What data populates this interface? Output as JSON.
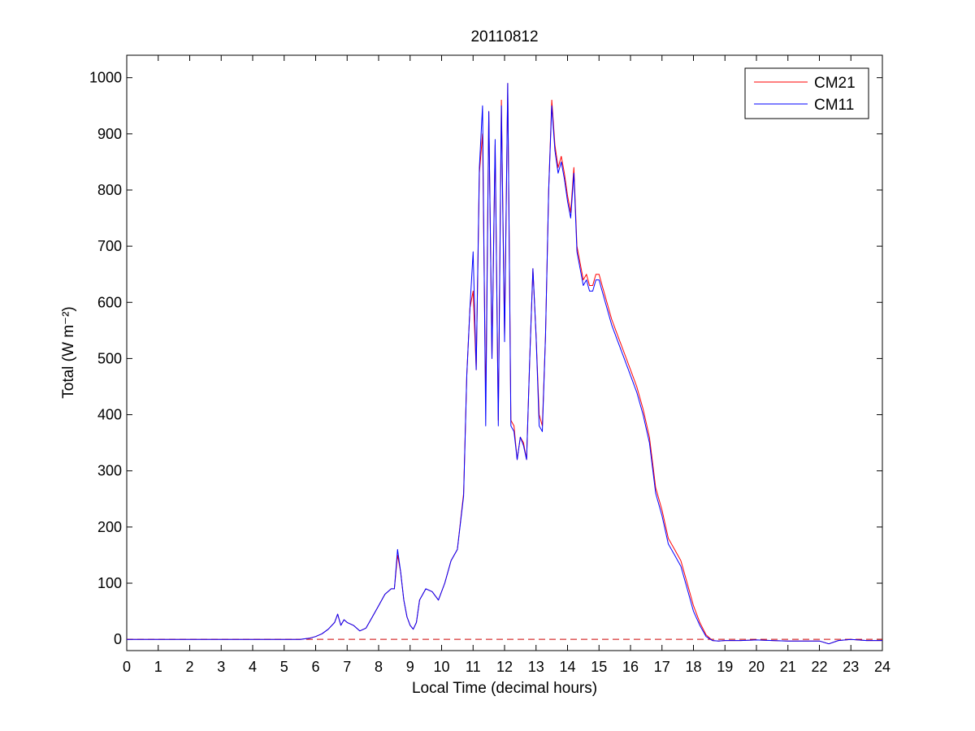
{
  "chart_data": {
    "type": "line",
    "title": "20110812",
    "xlabel": "Local Time (decimal hours)",
    "ylabel": "Total (W m⁻²)",
    "xlim": [
      0,
      24
    ],
    "ylim": [
      -20,
      1040
    ],
    "xticks": [
      0,
      1,
      2,
      3,
      4,
      5,
      6,
      7,
      8,
      9,
      10,
      11,
      12,
      13,
      14,
      15,
      16,
      17,
      18,
      19,
      20,
      21,
      22,
      23,
      24
    ],
    "yticks": [
      0,
      100,
      200,
      300,
      400,
      500,
      600,
      700,
      800,
      900,
      1000
    ],
    "grid": false,
    "legend_position": "top-right",
    "zero_line": {
      "y": 0,
      "color": "#cc0000",
      "style": "dashed"
    },
    "series": [
      {
        "name": "CM21",
        "color": "#ff0000",
        "x": [
          0,
          4.5,
          5.0,
          5.5,
          5.8,
          6.0,
          6.2,
          6.4,
          6.6,
          6.7,
          6.8,
          6.9,
          7.0,
          7.2,
          7.4,
          7.6,
          7.8,
          8.0,
          8.2,
          8.4,
          8.5,
          8.6,
          8.7,
          8.8,
          8.9,
          9.0,
          9.1,
          9.2,
          9.3,
          9.5,
          9.7,
          9.9,
          10.1,
          10.3,
          10.5,
          10.7,
          10.8,
          10.9,
          11.0,
          11.1,
          11.2,
          11.3,
          11.4,
          11.5,
          11.6,
          11.7,
          11.8,
          11.9,
          12.0,
          12.1,
          12.2,
          12.3,
          12.4,
          12.5,
          12.6,
          12.7,
          12.8,
          12.9,
          13.0,
          13.1,
          13.2,
          13.3,
          13.4,
          13.5,
          13.6,
          13.7,
          13.8,
          13.9,
          14.0,
          14.1,
          14.2,
          14.3,
          14.4,
          14.5,
          14.6,
          14.7,
          14.8,
          14.9,
          15.0,
          15.1,
          15.2,
          15.4,
          15.6,
          15.8,
          16.0,
          16.2,
          16.4,
          16.6,
          16.8,
          17.0,
          17.2,
          17.4,
          17.6,
          17.8,
          18.0,
          18.2,
          18.4,
          18.6,
          18.8,
          19.0,
          19.5,
          20.0,
          20.5,
          21.0,
          21.5,
          22.0,
          22.3,
          22.6,
          23.0,
          23.5,
          24.0
        ],
        "y": [
          0,
          0,
          0,
          0,
          2,
          5,
          10,
          18,
          30,
          45,
          25,
          35,
          30,
          25,
          15,
          20,
          40,
          60,
          80,
          90,
          90,
          150,
          120,
          70,
          40,
          25,
          18,
          30,
          70,
          90,
          85,
          70,
          100,
          140,
          160,
          260,
          470,
          590,
          620,
          480,
          830,
          900,
          420,
          940,
          500,
          880,
          390,
          960,
          540,
          990,
          390,
          380,
          320,
          360,
          350,
          320,
          500,
          660,
          540,
          400,
          380,
          540,
          800,
          960,
          880,
          840,
          860,
          830,
          790,
          760,
          840,
          700,
          670,
          640,
          650,
          630,
          630,
          650,
          650,
          630,
          610,
          570,
          540,
          510,
          480,
          450,
          410,
          360,
          270,
          230,
          180,
          160,
          140,
          100,
          60,
          30,
          8,
          -2,
          -3,
          -2,
          -2,
          -1,
          -2,
          -3,
          -3,
          -3,
          -8,
          -2,
          0,
          -2,
          -2
        ]
      },
      {
        "name": "CM11",
        "color": "#0000ff",
        "x": [
          0,
          4.5,
          5.0,
          5.5,
          5.8,
          6.0,
          6.2,
          6.4,
          6.6,
          6.7,
          6.8,
          6.9,
          7.0,
          7.2,
          7.4,
          7.6,
          7.8,
          8.0,
          8.2,
          8.4,
          8.5,
          8.6,
          8.7,
          8.8,
          8.9,
          9.0,
          9.1,
          9.2,
          9.3,
          9.5,
          9.7,
          9.9,
          10.1,
          10.3,
          10.5,
          10.7,
          10.8,
          10.9,
          11.0,
          11.1,
          11.2,
          11.3,
          11.4,
          11.5,
          11.6,
          11.7,
          11.8,
          11.9,
          12.0,
          12.1,
          12.2,
          12.3,
          12.4,
          12.5,
          12.6,
          12.7,
          12.8,
          12.9,
          13.0,
          13.1,
          13.2,
          13.3,
          13.4,
          13.5,
          13.6,
          13.7,
          13.8,
          13.9,
          14.0,
          14.1,
          14.2,
          14.3,
          14.4,
          14.5,
          14.6,
          14.7,
          14.8,
          14.9,
          15.0,
          15.1,
          15.2,
          15.4,
          15.6,
          15.8,
          16.0,
          16.2,
          16.4,
          16.6,
          16.8,
          17.0,
          17.2,
          17.4,
          17.6,
          17.8,
          18.0,
          18.2,
          18.4,
          18.6,
          18.8,
          19.0,
          19.5,
          20.0,
          20.5,
          21.0,
          21.5,
          22.0,
          22.3,
          22.6,
          23.0,
          23.5,
          24.0
        ],
        "y": [
          0,
          0,
          0,
          0,
          2,
          5,
          10,
          18,
          30,
          45,
          25,
          35,
          30,
          25,
          15,
          20,
          40,
          60,
          80,
          90,
          90,
          160,
          120,
          70,
          40,
          25,
          18,
          30,
          70,
          90,
          85,
          70,
          100,
          140,
          160,
          255,
          470,
          590,
          690,
          480,
          840,
          950,
          380,
          940,
          500,
          890,
          380,
          950,
          530,
          990,
          380,
          370,
          320,
          360,
          345,
          320,
          500,
          660,
          540,
          380,
          370,
          540,
          800,
          950,
          870,
          830,
          850,
          820,
          780,
          750,
          830,
          690,
          660,
          630,
          640,
          620,
          620,
          640,
          640,
          620,
          600,
          560,
          530,
          500,
          470,
          440,
          400,
          350,
          260,
          220,
          170,
          150,
          130,
          90,
          50,
          25,
          5,
          -2,
          -3,
          -2,
          -2,
          -1,
          -2,
          -3,
          -3,
          -3,
          -8,
          -2,
          0,
          -2,
          -2
        ]
      }
    ]
  }
}
